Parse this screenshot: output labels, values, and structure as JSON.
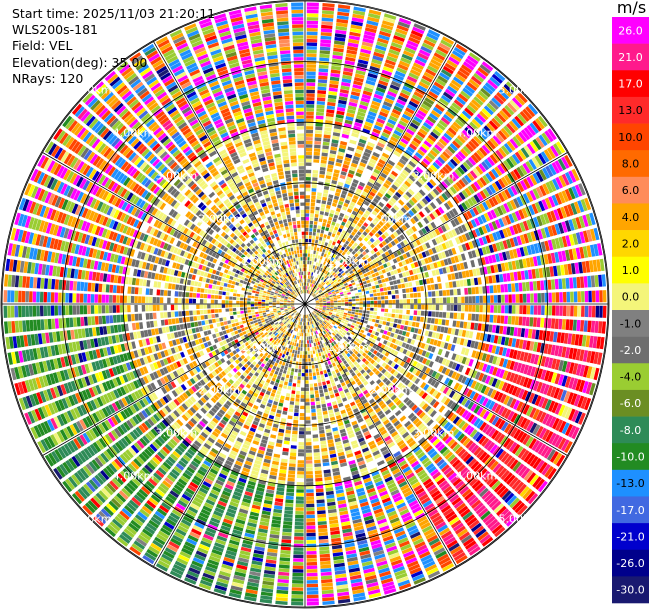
{
  "header": {
    "start_time": "Start time: 2025/11/03 21:20:11",
    "instrument": "WLS200s-181",
    "field": "Field: VEL",
    "elevation": "Elevation(deg): 35.00",
    "nrays": "NRays: 120"
  },
  "colorbar": {
    "unit": "m/s",
    "ticks": [
      "26.0",
      "21.0",
      "17.0",
      "13.0",
      "10.0",
      "8.0",
      "6.0",
      "4.0",
      "2.0",
      "1.0",
      "0.0",
      "-1.0",
      "-2.0",
      "-4.0",
      "-6.0",
      "-8.0",
      "-10.0",
      "-13.0",
      "-17.0",
      "-21.0",
      "-26.0",
      "-30.0"
    ],
    "colors": [
      "#ff00ff",
      "#ff1a8c",
      "#ff0000",
      "#ff2a2a",
      "#ff4500",
      "#ff6a00",
      "#ff8c5a",
      "#ffa500",
      "#ffd700",
      "#ffff00",
      "#f4f57a",
      "#808080",
      "#6e6e6e",
      "#9acd32",
      "#6b8e23",
      "#2e8b57",
      "#228b22",
      "#1e90ff",
      "#4169e1",
      "#0000cd",
      "#00008b",
      "#191970"
    ]
  },
  "chart_data": {
    "type": "heatmap",
    "projection": "polar PPI (plan position indicator)",
    "field": "VEL",
    "units": "m/s",
    "elevation_deg": 35.0,
    "n_rays": 120,
    "range_rings_km": [
      1,
      2,
      3,
      4,
      5
    ],
    "range_ring_labels": [
      "1.00km",
      "2.00km",
      "3.00km",
      "4.00km",
      "5.00km"
    ],
    "color_scale_m_s": [
      -30,
      -26,
      -21,
      -17,
      -13,
      -10,
      -8,
      -6,
      -4,
      -2,
      -1,
      0,
      1,
      2,
      4,
      6,
      8,
      10,
      13,
      17,
      21,
      26
    ],
    "max_range_km": 5.0,
    "radial_pattern": [
      {
        "range_km": [
          0.0,
          0.8
        ],
        "dominant_values_m_s": [
          4,
          -2,
          0
        ]
      },
      {
        "range_km": [
          0.8,
          1.5
        ],
        "dominant_values_m_s": [
          -2,
          0,
          4
        ]
      },
      {
        "range_km": [
          1.5,
          3.0
        ],
        "dominant_values_m_s": [
          0,
          -2,
          4
        ]
      },
      {
        "range_km": [
          3.0,
          5.0
        ],
        "dominant_values_m_s": [
          -13,
          26,
          -4,
          4,
          10
        ]
      }
    ],
    "sector_pattern": [
      {
        "azimuth_deg": [
          90,
          150
        ],
        "range_km": [
          3.5,
          5.0
        ],
        "dominant_values_m_s": [
          13,
          17,
          21
        ]
      },
      {
        "azimuth_deg": [
          180,
          270
        ],
        "range_km": [
          3.0,
          5.0
        ],
        "dominant_values_m_s": [
          -4,
          -8,
          -10
        ]
      }
    ]
  }
}
